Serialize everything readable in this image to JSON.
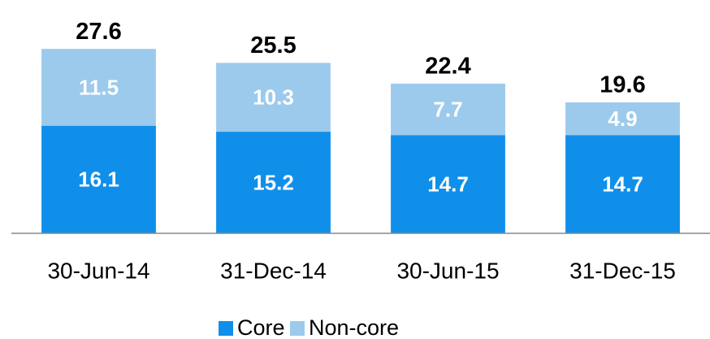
{
  "chart_data": {
    "type": "stacked_bar",
    "categories": [
      "30-Jun-14",
      "31-Dec-14",
      "30-Jun-15",
      "31-Dec-15"
    ],
    "series": [
      {
        "name": "Core",
        "color": "#0f8fea",
        "values": [
          16.1,
          15.2,
          14.7,
          14.7
        ]
      },
      {
        "name": "Non-core",
        "color": "#9ccaec",
        "values": [
          11.5,
          10.3,
          7.7,
          4.9
        ]
      }
    ],
    "totals": [
      27.6,
      25.5,
      22.4,
      19.6
    ],
    "ylim": [
      0,
      30
    ],
    "legend": "bottom"
  }
}
